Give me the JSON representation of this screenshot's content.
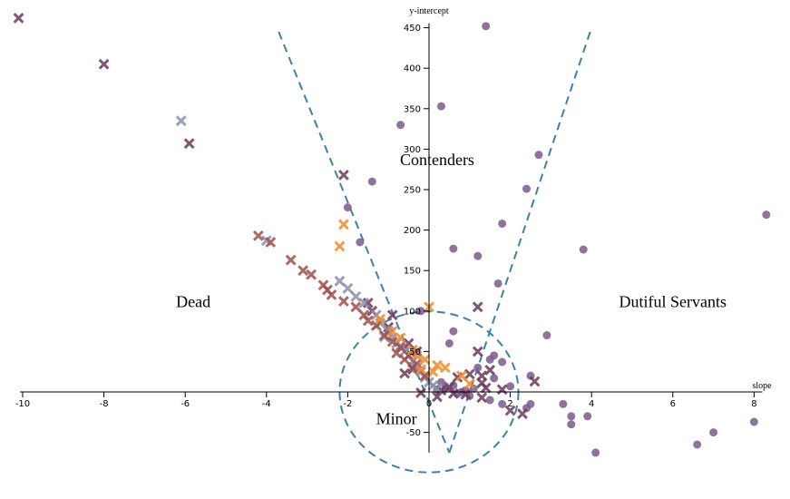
{
  "chart_data": {
    "type": "scatter",
    "title": "",
    "xlabel": "slope",
    "ylabel": "y-intercept",
    "xlim": [
      -10,
      8.2
    ],
    "ylim": [
      -75,
      460
    ],
    "x_ticks": [
      -10,
      -8,
      -6,
      -4,
      -2,
      0,
      2,
      4,
      6,
      8
    ],
    "y_ticks": [
      -50,
      50,
      100,
      150,
      200,
      250,
      300,
      350,
      400,
      450
    ],
    "grid": false,
    "region_labels": [
      {
        "text": "Dead",
        "x": -5.8,
        "y": 105
      },
      {
        "text": "Contenders",
        "x": 0.2,
        "y": 280
      },
      {
        "text": "Dutiful Servants",
        "x": 6.0,
        "y": 105
      },
      {
        "text": "Minor",
        "x": -0.8,
        "y": -40
      }
    ],
    "boundaries": {
      "circle": {
        "cx": 0,
        "cy": 0,
        "r": 2.2
      },
      "v_left": [
        [
          -3.7,
          445
        ],
        [
          0.5,
          -75
        ]
      ],
      "v_right": [
        [
          0.5,
          -75
        ],
        [
          4.0,
          450
        ]
      ]
    },
    "colors": {
      "boundary": "#3f7fab",
      "purple": "#7a5a8c",
      "dark": "#6b3a5c",
      "grey": "#8a8faa",
      "brown": "#9e4f4a",
      "orange": "#f08a2c"
    },
    "series": [
      {
        "marker": "circle",
        "color": "#7a5a8c",
        "points": [
          [
            1.4,
            452
          ],
          [
            0.3,
            353
          ],
          [
            -0.7,
            330
          ],
          [
            2.7,
            293
          ],
          [
            -1.4,
            260
          ],
          [
            2.4,
            251
          ],
          [
            -2.0,
            228
          ],
          [
            8.3,
            219
          ],
          [
            1.8,
            208
          ],
          [
            0.6,
            177
          ],
          [
            3.8,
            176
          ],
          [
            1.2,
            168
          ],
          [
            -1.7,
            185
          ],
          [
            1.7,
            134
          ],
          [
            -0.2,
            100
          ],
          [
            0.6,
            75
          ],
          [
            0.5,
            60
          ],
          [
            2.9,
            70
          ],
          [
            1.6,
            45
          ],
          [
            1.5,
            40
          ],
          [
            1.8,
            37
          ],
          [
            1.2,
            30
          ],
          [
            2.5,
            20
          ],
          [
            1.6,
            17
          ],
          [
            2.0,
            7
          ],
          [
            0.8,
            0
          ],
          [
            1.0,
            -5
          ],
          [
            1.5,
            -10
          ],
          [
            1.8,
            -15
          ],
          [
            2.5,
            -15
          ],
          [
            2.4,
            -20
          ],
          [
            3.3,
            -15
          ],
          [
            3.5,
            -30
          ],
          [
            3.5,
            -40
          ],
          [
            3.9,
            -30
          ],
          [
            4.1,
            -75
          ],
          [
            6.6,
            -65
          ],
          [
            7.0,
            -50
          ],
          [
            8.0,
            -37
          ],
          [
            0.3,
            12
          ],
          [
            0.6,
            8
          ],
          [
            0.4,
            4
          ],
          [
            0.2,
            3
          ],
          [
            0.9,
            2
          ],
          [
            1.1,
            4
          ],
          [
            0.7,
            -2
          ]
        ]
      },
      {
        "marker": "x",
        "color": "#6b3a5c",
        "points": [
          [
            -10.1,
            462
          ],
          [
            -8.0,
            405
          ],
          [
            -5.9,
            307
          ],
          [
            -2.1,
            268
          ],
          [
            -1.5,
            110
          ],
          [
            -1.4,
            100
          ],
          [
            -0.9,
            95
          ],
          [
            1.2,
            105
          ],
          [
            -1.0,
            80
          ],
          [
            -0.5,
            60
          ],
          [
            -0.3,
            50
          ],
          [
            1.2,
            50
          ],
          [
            2.6,
            13
          ],
          [
            2.0,
            -23
          ],
          [
            2.3,
            -27
          ],
          [
            1.8,
            3
          ],
          [
            1.4,
            5
          ],
          [
            1.3,
            11
          ],
          [
            0.9,
            -3
          ],
          [
            0.7,
            18
          ],
          [
            0.5,
            6
          ],
          [
            0.3,
            2
          ],
          [
            1.3,
            -7
          ],
          [
            1.0,
            22
          ],
          [
            1.3,
            20
          ],
          [
            1.5,
            27
          ],
          [
            0.6,
            -2
          ],
          [
            0.2,
            -6
          ],
          [
            -0.2,
            -1
          ],
          [
            -0.4,
            28
          ],
          [
            -0.6,
            23
          ]
        ]
      },
      {
        "marker": "x",
        "color": "#8a8faa",
        "points": [
          [
            -6.1,
            335
          ],
          [
            -4.0,
            187
          ],
          [
            -2.2,
            137
          ],
          [
            -2.0,
            128
          ],
          [
            -1.8,
            118
          ],
          [
            -1.6,
            110
          ],
          [
            -1.3,
            95
          ],
          [
            -1.2,
            85
          ],
          [
            -1.0,
            75
          ],
          [
            -0.9,
            67
          ],
          [
            -0.7,
            57
          ],
          [
            -0.6,
            50
          ],
          [
            -0.5,
            45
          ],
          [
            -1.1,
            68
          ],
          [
            -0.8,
            60
          ],
          [
            -0.4,
            38
          ],
          [
            -0.3,
            30
          ],
          [
            -0.2,
            25
          ],
          [
            -0.1,
            18
          ],
          [
            0.0,
            12
          ],
          [
            0.1,
            8
          ],
          [
            0.2,
            4
          ]
        ]
      },
      {
        "marker": "x",
        "color": "#9e4f4a",
        "points": [
          [
            -4.2,
            193
          ],
          [
            -3.9,
            185
          ],
          [
            -3.4,
            163
          ],
          [
            -3.1,
            150
          ],
          [
            -2.9,
            145
          ],
          [
            -2.6,
            132
          ],
          [
            -2.5,
            126
          ],
          [
            -2.4,
            120
          ],
          [
            -2.1,
            112
          ],
          [
            -1.8,
            105
          ],
          [
            -1.6,
            95
          ],
          [
            -1.5,
            88
          ],
          [
            -1.3,
            82
          ],
          [
            -1.1,
            70
          ],
          [
            -0.9,
            62
          ],
          [
            -0.7,
            55
          ],
          [
            -0.5,
            45
          ],
          [
            -0.3,
            35
          ],
          [
            -0.1,
            20
          ],
          [
            -0.8,
            48
          ],
          [
            -0.6,
            40
          ],
          [
            -0.4,
            30
          ]
        ]
      },
      {
        "marker": "x",
        "color": "#f08a2c",
        "points": [
          [
            -2.1,
            207
          ],
          [
            -2.2,
            180
          ],
          [
            -1.2,
            90
          ],
          [
            -0.9,
            75
          ],
          [
            -0.7,
            67
          ],
          [
            -0.4,
            52
          ],
          [
            -0.3,
            45
          ],
          [
            0.0,
            105
          ],
          [
            0.2,
            33
          ],
          [
            0.4,
            30
          ],
          [
            0.8,
            20
          ],
          [
            1.0,
            10
          ],
          [
            -0.2,
            28
          ],
          [
            -0.1,
            40
          ],
          [
            0.1,
            25
          ]
        ]
      }
    ]
  }
}
